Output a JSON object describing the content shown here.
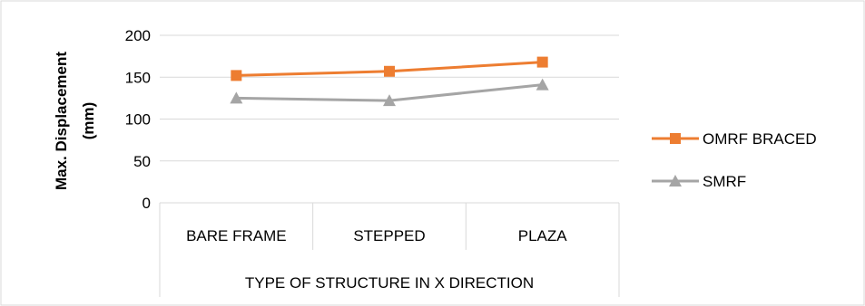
{
  "chart_data": {
    "type": "line",
    "categories": [
      "BARE FRAME",
      "STEPPED",
      "PLAZA"
    ],
    "series": [
      {
        "name": "OMRF BRACED",
        "values": [
          152,
          157,
          168
        ],
        "color": "#ed7d31",
        "marker": "square"
      },
      {
        "name": "SMRF",
        "values": [
          125,
          122,
          141
        ],
        "color": "#a5a5a5",
        "marker": "triangle"
      }
    ],
    "ylabel_lines": [
      "Max. Displacement",
      "(mm)"
    ],
    "xlabel": "TYPE OF STRUCTURE IN X DIRECTION",
    "ylim": [
      0,
      200
    ],
    "yticks": [
      0,
      50,
      100,
      150,
      200
    ],
    "grid": true,
    "legend_position": "right"
  }
}
